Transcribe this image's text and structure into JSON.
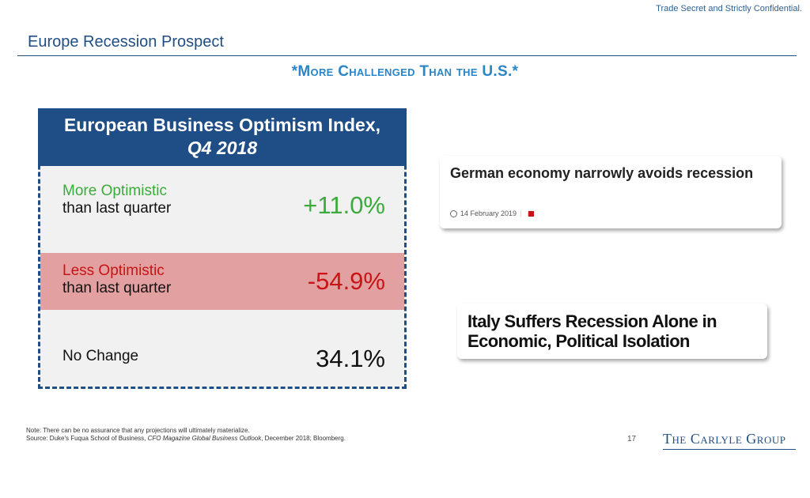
{
  "header": {
    "confidential": "Trade Secret and Strictly Confidential.",
    "title": "Europe Recession Prospect",
    "subtitle": "*More Challenged Than the U.S.*"
  },
  "card": {
    "title_line1": "European Business Optimism Index,",
    "title_line2": "Q4 2018",
    "rows": [
      {
        "label1": "More Optimistic",
        "label2": "than last quarter",
        "value": "+11.0%",
        "color": "#3caa3c"
      },
      {
        "label1": "Less Optimistic",
        "label2": "than last quarter",
        "value": "-54.9%",
        "color": "#c81414"
      },
      {
        "label1": "No Change",
        "value": "34.1%",
        "color": "#111111"
      }
    ]
  },
  "news": [
    {
      "headline": "German economy narrowly avoids recession",
      "date": "14 February 2019",
      "icons": [
        "clock-icon",
        "flag-icon"
      ]
    },
    {
      "headline": "Italy Suffers Recession Alone in Economic, Political Isolation"
    }
  ],
  "footer": {
    "note": "Note: There can be no assurance that any projections will ultimately materialize.",
    "source_prefix": "Source: Duke's Fuqua School of Business, ",
    "source_italic": "CFO Magazine Global Business Outlook",
    "source_suffix": ", December 2018; Bloomberg.",
    "page_number": "17",
    "logo": "The Carlyle Group"
  },
  "colors": {
    "brand": "#1f4e86",
    "accent": "#2a86c6",
    "positive": "#3caa3c",
    "negative": "#c81414"
  }
}
